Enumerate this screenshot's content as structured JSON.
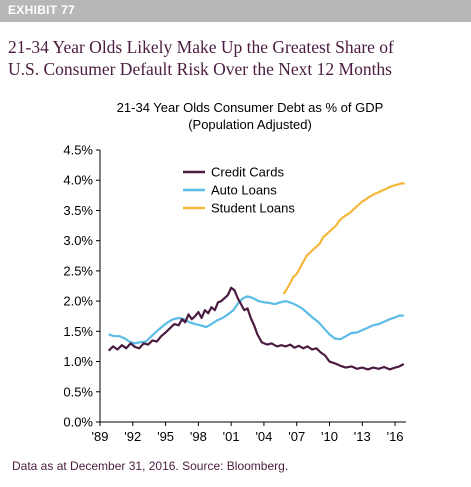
{
  "exhibit_label": "EXHIBIT 77",
  "headline": {
    "line1": "21-34 Year Olds Likely Make Up the Greatest Share of",
    "line2": "U.S. Consumer Default Risk Over the Next 12 Months"
  },
  "source_note": "Data as at December 31, 2016. Source: Bloomberg.",
  "chart_data": {
    "type": "line",
    "title": "21-34 Year Olds Consumer Debt as % of GDP",
    "subtitle": "(Population Adjusted)",
    "xlabel": "",
    "ylabel": "",
    "xlim": [
      1989,
      2017
    ],
    "ylim": [
      0,
      4.5
    ],
    "x_ticks": [
      1989,
      1992,
      1995,
      1998,
      2001,
      2004,
      2007,
      2010,
      2013,
      2016
    ],
    "x_tick_labels": [
      "'89",
      "'92",
      "'95",
      "'98",
      "'01",
      "'04",
      "'07",
      "'10",
      "'13",
      "'16"
    ],
    "y_ticks": [
      0,
      0.5,
      1.0,
      1.5,
      2.0,
      2.5,
      3.0,
      3.5,
      4.0,
      4.5
    ],
    "y_tick_labels": [
      "0.0%",
      "0.5%",
      "1.0%",
      "1.5%",
      "2.0%",
      "2.5%",
      "3.0%",
      "3.5%",
      "4.0%",
      "4.5%"
    ],
    "grid": false,
    "legend_position": "top-center",
    "series": [
      {
        "name": "Credit Cards",
        "color": "#4b1c3f",
        "points": [
          [
            1989.8,
            1.18
          ],
          [
            1990.2,
            1.25
          ],
          [
            1990.6,
            1.2
          ],
          [
            1991.0,
            1.27
          ],
          [
            1991.4,
            1.22
          ],
          [
            1991.8,
            1.3
          ],
          [
            1992.2,
            1.24
          ],
          [
            1992.6,
            1.22
          ],
          [
            1993.0,
            1.3
          ],
          [
            1993.4,
            1.28
          ],
          [
            1993.8,
            1.35
          ],
          [
            1994.2,
            1.33
          ],
          [
            1994.6,
            1.42
          ],
          [
            1995.0,
            1.48
          ],
          [
            1995.4,
            1.55
          ],
          [
            1995.8,
            1.62
          ],
          [
            1996.2,
            1.6
          ],
          [
            1996.5,
            1.7
          ],
          [
            1996.8,
            1.65
          ],
          [
            1997.1,
            1.78
          ],
          [
            1997.4,
            1.7
          ],
          [
            1997.7,
            1.75
          ],
          [
            1998.0,
            1.82
          ],
          [
            1998.3,
            1.72
          ],
          [
            1998.6,
            1.85
          ],
          [
            1998.9,
            1.8
          ],
          [
            1999.2,
            1.9
          ],
          [
            1999.5,
            1.85
          ],
          [
            1999.8,
            1.98
          ],
          [
            2000.1,
            2.0
          ],
          [
            2000.4,
            2.05
          ],
          [
            2000.7,
            2.1
          ],
          [
            2001.0,
            2.22
          ],
          [
            2001.3,
            2.18
          ],
          [
            2001.6,
            2.05
          ],
          [
            2001.9,
            1.95
          ],
          [
            2002.2,
            1.85
          ],
          [
            2002.5,
            1.88
          ],
          [
            2002.8,
            1.72
          ],
          [
            2003.1,
            1.6
          ],
          [
            2003.4,
            1.45
          ],
          [
            2003.8,
            1.32
          ],
          [
            2004.3,
            1.28
          ],
          [
            2004.7,
            1.3
          ],
          [
            2005.2,
            1.25
          ],
          [
            2005.6,
            1.27
          ],
          [
            2006.0,
            1.25
          ],
          [
            2006.4,
            1.28
          ],
          [
            2006.8,
            1.23
          ],
          [
            2007.2,
            1.26
          ],
          [
            2007.6,
            1.22
          ],
          [
            2008.0,
            1.25
          ],
          [
            2008.4,
            1.2
          ],
          [
            2008.8,
            1.22
          ],
          [
            2009.2,
            1.15
          ],
          [
            2009.6,
            1.1
          ],
          [
            2010.0,
            1.0
          ],
          [
            2010.5,
            0.97
          ],
          [
            2011.0,
            0.93
          ],
          [
            2011.5,
            0.9
          ],
          [
            2012.0,
            0.92
          ],
          [
            2012.5,
            0.88
          ],
          [
            2013.0,
            0.9
          ],
          [
            2013.5,
            0.87
          ],
          [
            2014.0,
            0.9
          ],
          [
            2014.5,
            0.88
          ],
          [
            2015.0,
            0.91
          ],
          [
            2015.5,
            0.87
          ],
          [
            2016.0,
            0.9
          ],
          [
            2016.4,
            0.92
          ],
          [
            2016.8,
            0.96
          ]
        ]
      },
      {
        "name": "Auto Loans",
        "color": "#5bbce6",
        "points": [
          [
            1989.8,
            1.45
          ],
          [
            1990.3,
            1.42
          ],
          [
            1990.8,
            1.42
          ],
          [
            1991.3,
            1.38
          ],
          [
            1991.7,
            1.33
          ],
          [
            1992.2,
            1.3
          ],
          [
            1992.7,
            1.32
          ],
          [
            1993.2,
            1.33
          ],
          [
            1993.7,
            1.42
          ],
          [
            1994.2,
            1.5
          ],
          [
            1994.7,
            1.58
          ],
          [
            1995.2,
            1.65
          ],
          [
            1995.7,
            1.7
          ],
          [
            1996.2,
            1.72
          ],
          [
            1996.7,
            1.7
          ],
          [
            1997.2,
            1.65
          ],
          [
            1997.7,
            1.62
          ],
          [
            1998.2,
            1.6
          ],
          [
            1998.7,
            1.57
          ],
          [
            1999.2,
            1.62
          ],
          [
            1999.7,
            1.68
          ],
          [
            2000.2,
            1.72
          ],
          [
            2000.7,
            1.78
          ],
          [
            2001.2,
            1.85
          ],
          [
            2001.7,
            1.98
          ],
          [
            2002.1,
            2.05
          ],
          [
            2002.5,
            2.08
          ],
          [
            2003.0,
            2.05
          ],
          [
            2003.5,
            2.0
          ],
          [
            2004.0,
            1.98
          ],
          [
            2004.5,
            1.97
          ],
          [
            2005.0,
            1.95
          ],
          [
            2005.5,
            1.98
          ],
          [
            2006.0,
            2.0
          ],
          [
            2006.5,
            1.97
          ],
          [
            2007.0,
            1.93
          ],
          [
            2007.5,
            1.88
          ],
          [
            2008.0,
            1.8
          ],
          [
            2008.5,
            1.72
          ],
          [
            2009.0,
            1.65
          ],
          [
            2009.5,
            1.55
          ],
          [
            2010.0,
            1.45
          ],
          [
            2010.5,
            1.38
          ],
          [
            2011.0,
            1.37
          ],
          [
            2011.5,
            1.42
          ],
          [
            2012.0,
            1.47
          ],
          [
            2012.5,
            1.48
          ],
          [
            2013.0,
            1.52
          ],
          [
            2013.5,
            1.56
          ],
          [
            2014.0,
            1.6
          ],
          [
            2014.5,
            1.62
          ],
          [
            2015.0,
            1.66
          ],
          [
            2015.5,
            1.7
          ],
          [
            2016.0,
            1.73
          ],
          [
            2016.4,
            1.76
          ],
          [
            2016.8,
            1.76
          ]
        ]
      },
      {
        "name": "Student Loans",
        "color": "#f5b83d",
        "points": [
          [
            2005.8,
            2.12
          ],
          [
            2006.1,
            2.2
          ],
          [
            2006.4,
            2.3
          ],
          [
            2006.7,
            2.4
          ],
          [
            2007.0,
            2.45
          ],
          [
            2007.3,
            2.55
          ],
          [
            2007.6,
            2.65
          ],
          [
            2007.9,
            2.75
          ],
          [
            2008.2,
            2.8
          ],
          [
            2008.5,
            2.85
          ],
          [
            2008.8,
            2.9
          ],
          [
            2009.1,
            2.95
          ],
          [
            2009.4,
            3.05
          ],
          [
            2009.7,
            3.1
          ],
          [
            2010.0,
            3.15
          ],
          [
            2010.3,
            3.2
          ],
          [
            2010.6,
            3.25
          ],
          [
            2010.9,
            3.33
          ],
          [
            2011.2,
            3.38
          ],
          [
            2011.5,
            3.42
          ],
          [
            2011.8,
            3.45
          ],
          [
            2012.1,
            3.5
          ],
          [
            2012.4,
            3.55
          ],
          [
            2012.7,
            3.6
          ],
          [
            2013.0,
            3.65
          ],
          [
            2013.3,
            3.68
          ],
          [
            2013.6,
            3.72
          ],
          [
            2013.9,
            3.75
          ],
          [
            2014.2,
            3.78
          ],
          [
            2014.5,
            3.8
          ],
          [
            2014.8,
            3.83
          ],
          [
            2015.1,
            3.85
          ],
          [
            2015.4,
            3.88
          ],
          [
            2015.7,
            3.9
          ],
          [
            2016.0,
            3.92
          ],
          [
            2016.3,
            3.93
          ],
          [
            2016.6,
            3.95
          ],
          [
            2016.9,
            3.94
          ]
        ]
      }
    ]
  }
}
